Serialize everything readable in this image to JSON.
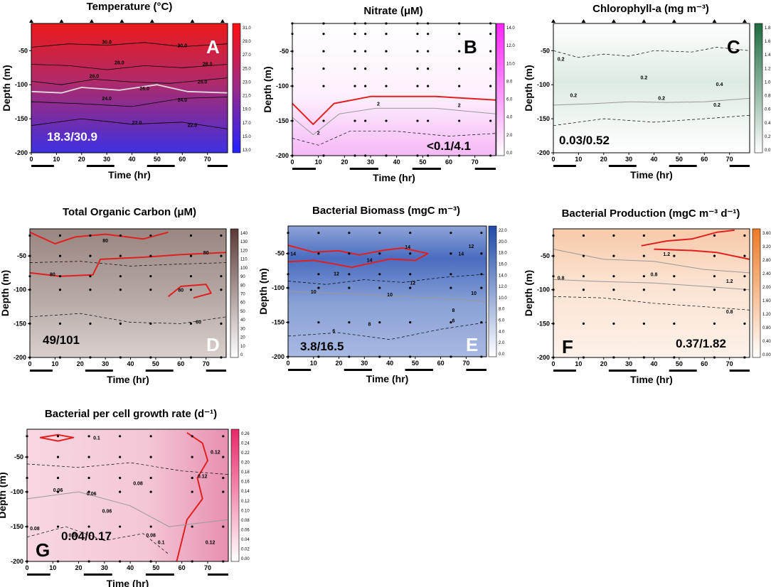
{
  "colors": {
    "temp_top": "#e8161a",
    "temp_bottom": "#3a2ee0",
    "nitrate": "#ff33ff",
    "chla": "#2e7d4f",
    "toc": "#6a4a45",
    "bbiomass": "#2f57b0",
    "bprod": "#f07a2a",
    "growth": "#e0306e",
    "critical": "#e02020"
  },
  "chart_data": [
    {
      "id": "A",
      "type": "heatmap",
      "title": "Temperature (°C)",
      "xlabel": "Time (hr)",
      "ylabel": "Depth (m)",
      "xlim": [
        0,
        78
      ],
      "ylim": [
        -200,
        -10
      ],
      "xticks": [
        "0",
        "10",
        "20",
        "30",
        "40",
        "50",
        "60",
        "70"
      ],
      "yticks": [
        "-50",
        "-100",
        "-150",
        "-200"
      ],
      "colorbar": [
        "31.0",
        "29.0",
        "27.0",
        "25.0",
        "23.0",
        "21.0",
        "19.0",
        "17.0",
        "15.0",
        "13.0"
      ],
      "contour_labels": [
        "30.0",
        "30.0",
        "28.0",
        "28.0",
        "28.0",
        "26.0",
        "26.0",
        "24.0",
        "24.0",
        "22.0",
        "22.0"
      ],
      "range_label": "18.3/30.9",
      "letter": "A",
      "sample_times": [
        0,
        12,
        24,
        36,
        48,
        64,
        76
      ]
    },
    {
      "id": "B",
      "type": "heatmap",
      "title": "Nitrate (μM)",
      "xlabel": "Time (hr)",
      "ylabel": "Depth (m)",
      "xlim": [
        0,
        78
      ],
      "ylim": [
        -200,
        -10
      ],
      "xticks": [
        "0",
        "10",
        "20",
        "30",
        "40",
        "50",
        "60",
        "70"
      ],
      "yticks": [
        "-50",
        "-100",
        "-150",
        "-200"
      ],
      "colorbar": [
        "14.0",
        "12.0",
        "10.0",
        "8.0",
        "6.0",
        "4.0",
        "2.0",
        "0.0"
      ],
      "contour_labels": [
        "2",
        "2",
        "2"
      ],
      "range_label": "<0.1/4.1",
      "letter": "B",
      "sample_times": [
        0,
        12,
        24,
        28,
        36,
        48,
        52,
        64,
        76
      ],
      "sample_depths": [
        -10,
        -25,
        -50,
        -75,
        -100,
        -150,
        -200
      ]
    },
    {
      "id": "C",
      "type": "heatmap",
      "title": "Chlorophyll-a (mg m⁻³)",
      "xlabel": "Time (hr)",
      "ylabel": "Depth (m)",
      "xlim": [
        0,
        78
      ],
      "ylim": [
        -200,
        -10
      ],
      "xticks": [
        "0",
        "10",
        "20",
        "30",
        "40",
        "50",
        "60",
        "70"
      ],
      "yticks": [
        "-50",
        "-100",
        "-150",
        "-200"
      ],
      "colorbar": [
        "1.8",
        "1.6",
        "1.4",
        "1.2",
        "1.0",
        "0.8",
        "0.6",
        "0.4",
        "0.2",
        "0.0"
      ],
      "contour_labels": [
        "0.2",
        "0.2",
        "0.2",
        "0.2",
        "0.2",
        "0.4"
      ],
      "range_label": "0.03/0.52",
      "letter": "C",
      "sample_times": [
        0,
        12,
        24,
        36,
        48,
        64,
        76
      ]
    },
    {
      "id": "D",
      "type": "heatmap",
      "title": "Total Organic Carbon (μM)",
      "xlabel": "Time (hr)",
      "ylabel": "Depth (m)",
      "xlim": [
        0,
        78
      ],
      "ylim": [
        -200,
        -10
      ],
      "xticks": [
        "0",
        "10",
        "20",
        "30",
        "40",
        "50",
        "60",
        "70"
      ],
      "yticks": [
        "-50",
        "-100",
        "-150",
        "-200"
      ],
      "colorbar": [
        "140",
        "130",
        "120",
        "110",
        "100",
        "90",
        "80",
        "70",
        "60",
        "50",
        "40",
        "30",
        "20",
        "10",
        "0"
      ],
      "contour_labels": [
        "80",
        "80",
        "80",
        "80",
        "60"
      ],
      "range_label": "49/101",
      "letter": "D",
      "sample_times": [
        0,
        12,
        24,
        36,
        48,
        64,
        76
      ],
      "sample_depths": [
        -20,
        -50,
        -80,
        -100,
        -150,
        -200
      ]
    },
    {
      "id": "E",
      "type": "heatmap",
      "title": "Bacterial Biomass (mgC m⁻³)",
      "xlabel": "Time (hr)",
      "ylabel": "Depth (m)",
      "xlim": [
        0,
        78
      ],
      "ylim": [
        -200,
        -10
      ],
      "xticks": [
        "0",
        "10",
        "20",
        "30",
        "40",
        "50",
        "60",
        "70"
      ],
      "yticks": [
        "-50",
        "-100",
        "-150",
        "-200"
      ],
      "colorbar": [
        "22.0",
        "20.0",
        "18.0",
        "16.0",
        "14.0",
        "12.0",
        "10.0",
        "8.0",
        "6.0",
        "4.0",
        "2.0",
        "0.0"
      ],
      "contour_labels": [
        "14",
        "14",
        "14",
        "14",
        "12",
        "12",
        "12",
        "10",
        "10",
        "10",
        "8",
        "8",
        "6",
        "6"
      ],
      "range_label": "3.8/16.5",
      "letter": "E",
      "sample_times": [
        0,
        12,
        24,
        36,
        48,
        64,
        76
      ],
      "sample_depths": [
        -20,
        -50,
        -80,
        -100,
        -150,
        -200
      ]
    },
    {
      "id": "F",
      "type": "heatmap",
      "title": "Bacterial Production (mgC m⁻³ d⁻¹)",
      "xlabel": "Time (hr)",
      "ylabel": "Depth (m)",
      "xlim": [
        0,
        78
      ],
      "ylim": [
        -200,
        -10
      ],
      "xticks": [
        "0",
        "10",
        "20",
        "30",
        "40",
        "50",
        "60",
        "70"
      ],
      "yticks": [
        "-50",
        "-100",
        "-150",
        "-200"
      ],
      "colorbar": [
        "3.60",
        "3.20",
        "2.80",
        "2.40",
        "2.00",
        "1.60",
        "1.20",
        "0.80",
        "0.40",
        "0.00"
      ],
      "contour_labels": [
        "1.2",
        "1.2",
        "0.8",
        "0.8",
        "0.8"
      ],
      "range_label": "0.37/1.82",
      "letter": "F",
      "sample_times": [
        0,
        12,
        24,
        36,
        48,
        64,
        76
      ],
      "sample_depths": [
        -20,
        -50,
        -80,
        -100,
        -150,
        -200
      ]
    },
    {
      "id": "G",
      "type": "heatmap",
      "title": "Bacterial per cell growth rate (d⁻¹)",
      "xlabel": "Time (hr)",
      "ylabel": "Depth (m)",
      "xlim": [
        0,
        78
      ],
      "ylim": [
        -200,
        -10
      ],
      "xticks": [
        "0",
        "10",
        "20",
        "30",
        "40",
        "50",
        "60",
        "70"
      ],
      "yticks": [
        "-50",
        "-100",
        "-150",
        "-200"
      ],
      "colorbar": [
        "0.26",
        "0.24",
        "0.22",
        "0.20",
        "0.18",
        "0.16",
        "0.14",
        "0.12",
        "0.10",
        "0.08",
        "0.06",
        "0.04",
        "0.02",
        "0.00"
      ],
      "contour_labels": [
        "0.08",
        "0.1",
        "0.12",
        "0.06",
        "0.06",
        "0.08",
        "0.06",
        "0.12",
        "0.08",
        "0.06",
        "0.1",
        "0.12"
      ],
      "range_label": "0.04/0.17",
      "letter": "G",
      "sample_times": [
        0,
        12,
        24,
        36,
        48,
        64,
        76
      ],
      "sample_depths": [
        -20,
        -50,
        -80,
        -100,
        -150,
        -200
      ]
    }
  ],
  "day_bars_hr": [
    [
      0,
      9
    ],
    [
      22,
      33
    ],
    [
      46,
      57
    ],
    [
      70,
      78
    ]
  ]
}
